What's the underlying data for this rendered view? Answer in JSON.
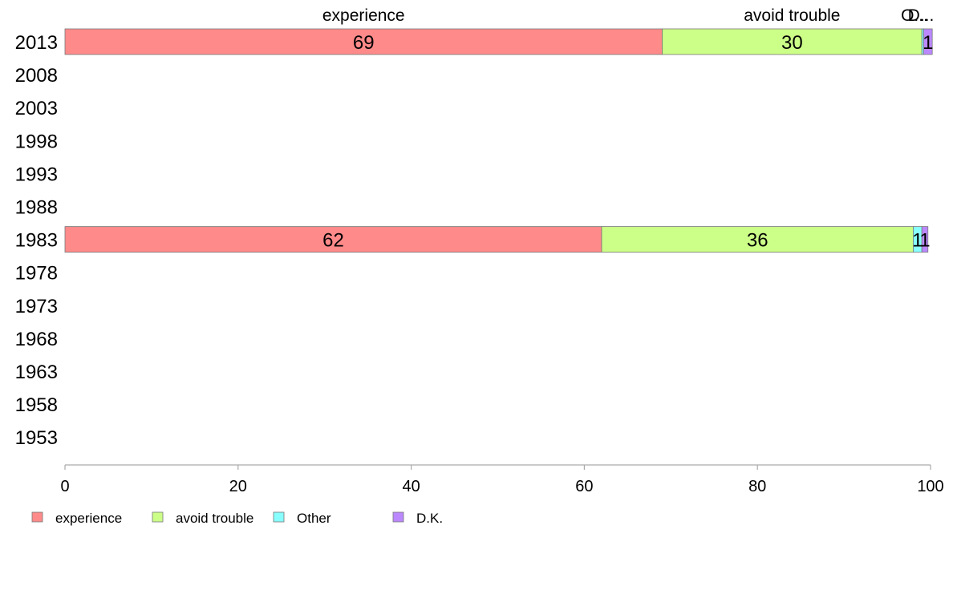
{
  "chart_data": {
    "type": "bar",
    "orientation": "horizontal",
    "stacked": true,
    "title": "",
    "xlabel": "",
    "ylabel": "",
    "xlim": [
      0,
      100
    ],
    "x_ticks": [
      "0",
      "20",
      "40",
      "60",
      "80",
      "100"
    ],
    "categories": [
      "2013",
      "2008",
      "2003",
      "1998",
      "1993",
      "1988",
      "1983",
      "1978",
      "1973",
      "1968",
      "1963",
      "1958",
      "1953"
    ],
    "series": [
      {
        "name": "experience",
        "color": "#ff8a8a",
        "values": [
          69,
          null,
          null,
          null,
          null,
          null,
          62,
          null,
          null,
          null,
          null,
          null,
          null
        ],
        "labels": [
          "69",
          null,
          null,
          null,
          null,
          null,
          "62",
          null,
          null,
          null,
          null,
          null,
          null
        ]
      },
      {
        "name": "avoid trouble",
        "color": "#ccff88",
        "values": [
          30,
          null,
          null,
          null,
          null,
          null,
          36,
          null,
          null,
          null,
          null,
          null,
          null
        ],
        "labels": [
          "30",
          null,
          null,
          null,
          null,
          null,
          "36",
          null,
          null,
          null,
          null,
          null,
          null
        ]
      },
      {
        "name": "Other",
        "color": "#88ffff",
        "values": [
          0.2,
          null,
          null,
          null,
          null,
          null,
          1,
          null,
          null,
          null,
          null,
          null,
          null
        ],
        "labels": [
          null,
          null,
          null,
          null,
          null,
          null,
          "1",
          null,
          null,
          null,
          null,
          null,
          null
        ]
      },
      {
        "name": "D.K.",
        "color": "#bb88ff",
        "values": [
          1,
          null,
          null,
          null,
          null,
          null,
          0.7,
          null,
          null,
          null,
          null,
          null,
          null
        ],
        "labels": [
          "1",
          null,
          null,
          null,
          null,
          null,
          "1",
          null,
          null,
          null,
          null,
          null,
          null
        ]
      }
    ],
    "top_labels": [
      "experience",
      "avoid trouble",
      "O...",
      "D..."
    ],
    "legend": {
      "position": "bottom-left",
      "items": [
        "experience",
        "avoid trouble",
        "Other",
        "D.K."
      ]
    },
    "grid": false
  }
}
